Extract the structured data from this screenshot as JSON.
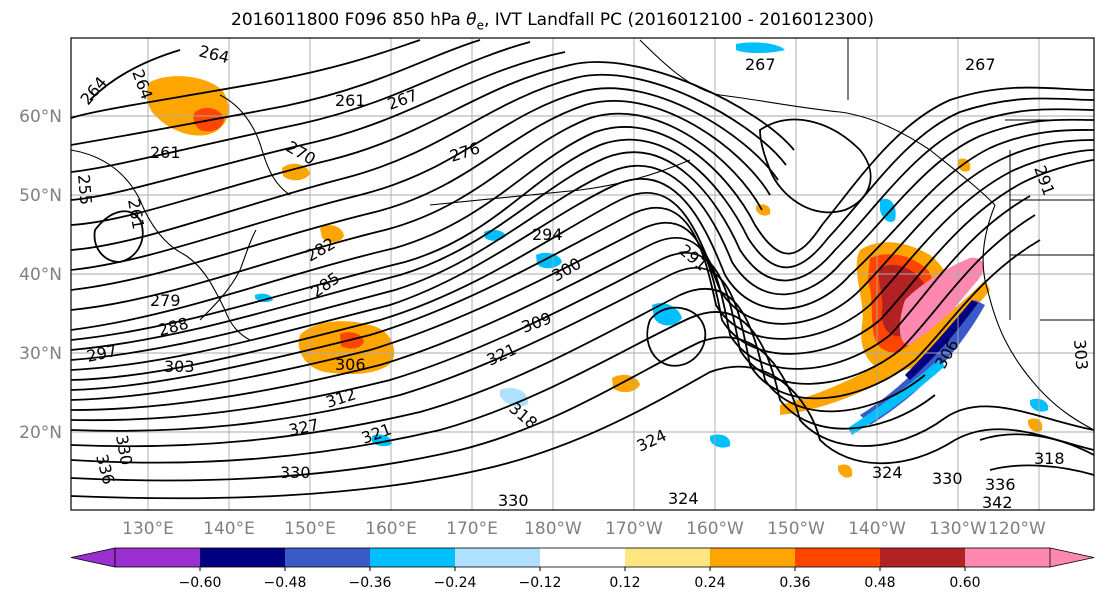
{
  "title": {
    "prefix": "2016011800 F096 850 hPa ",
    "theta_symbol": "θ",
    "theta_sub": "e",
    "suffix": ", IVT Landfall PC (2016012100 - 2016012300)"
  },
  "axes": {
    "lat_labels": [
      "60°N",
      "50°N",
      "40°N",
      "30°N",
      "20°N"
    ],
    "lon_labels": [
      "130°E",
      "140°E",
      "150°E",
      "160°E",
      "170°E",
      "180°W",
      "170°W",
      "160°W",
      "150°W",
      "140°W",
      "130°W",
      "120°W"
    ]
  },
  "colorbar": {
    "ticks": [
      "−0.60",
      "−0.48",
      "−0.36",
      "−0.24",
      "−0.12",
      "0.12",
      "0.24",
      "0.36",
      "0.48",
      "0.60"
    ],
    "colors": [
      "#9b30d0",
      "#000080",
      "#3a5bc7",
      "#00bfff",
      "#b0e0ff",
      "#ffffff",
      "#ffe680",
      "#ffa500",
      "#ff4500",
      "#b22222",
      "#ff88b0"
    ]
  },
  "contour_labels": [
    {
      "text": "264"
    },
    {
      "text": "264"
    },
    {
      "text": "264"
    },
    {
      "text": "261"
    },
    {
      "text": "267"
    },
    {
      "text": "270"
    },
    {
      "text": "276"
    },
    {
      "text": "267"
    },
    {
      "text": "267"
    },
    {
      "text": "261"
    },
    {
      "text": "255"
    },
    {
      "text": "261"
    },
    {
      "text": "282"
    },
    {
      "text": "294"
    },
    {
      "text": "300"
    },
    {
      "text": "291"
    },
    {
      "text": "285"
    },
    {
      "text": "279"
    },
    {
      "text": "288"
    },
    {
      "text": "297"
    },
    {
      "text": "303"
    },
    {
      "text": "306"
    },
    {
      "text": "309"
    },
    {
      "text": "321"
    },
    {
      "text": "312"
    },
    {
      "text": "327"
    },
    {
      "text": "321"
    },
    {
      "text": "318"
    },
    {
      "text": "324"
    },
    {
      "text": "330"
    },
    {
      "text": "336"
    },
    {
      "text": "330"
    },
    {
      "text": "324"
    },
    {
      "text": "330"
    },
    {
      "text": "324"
    },
    {
      "text": "330"
    },
    {
      "text": "336"
    },
    {
      "text": "342"
    },
    {
      "text": "318"
    },
    {
      "text": "303"
    },
    {
      "text": "306"
    },
    {
      "text": "291"
    }
  ]
}
